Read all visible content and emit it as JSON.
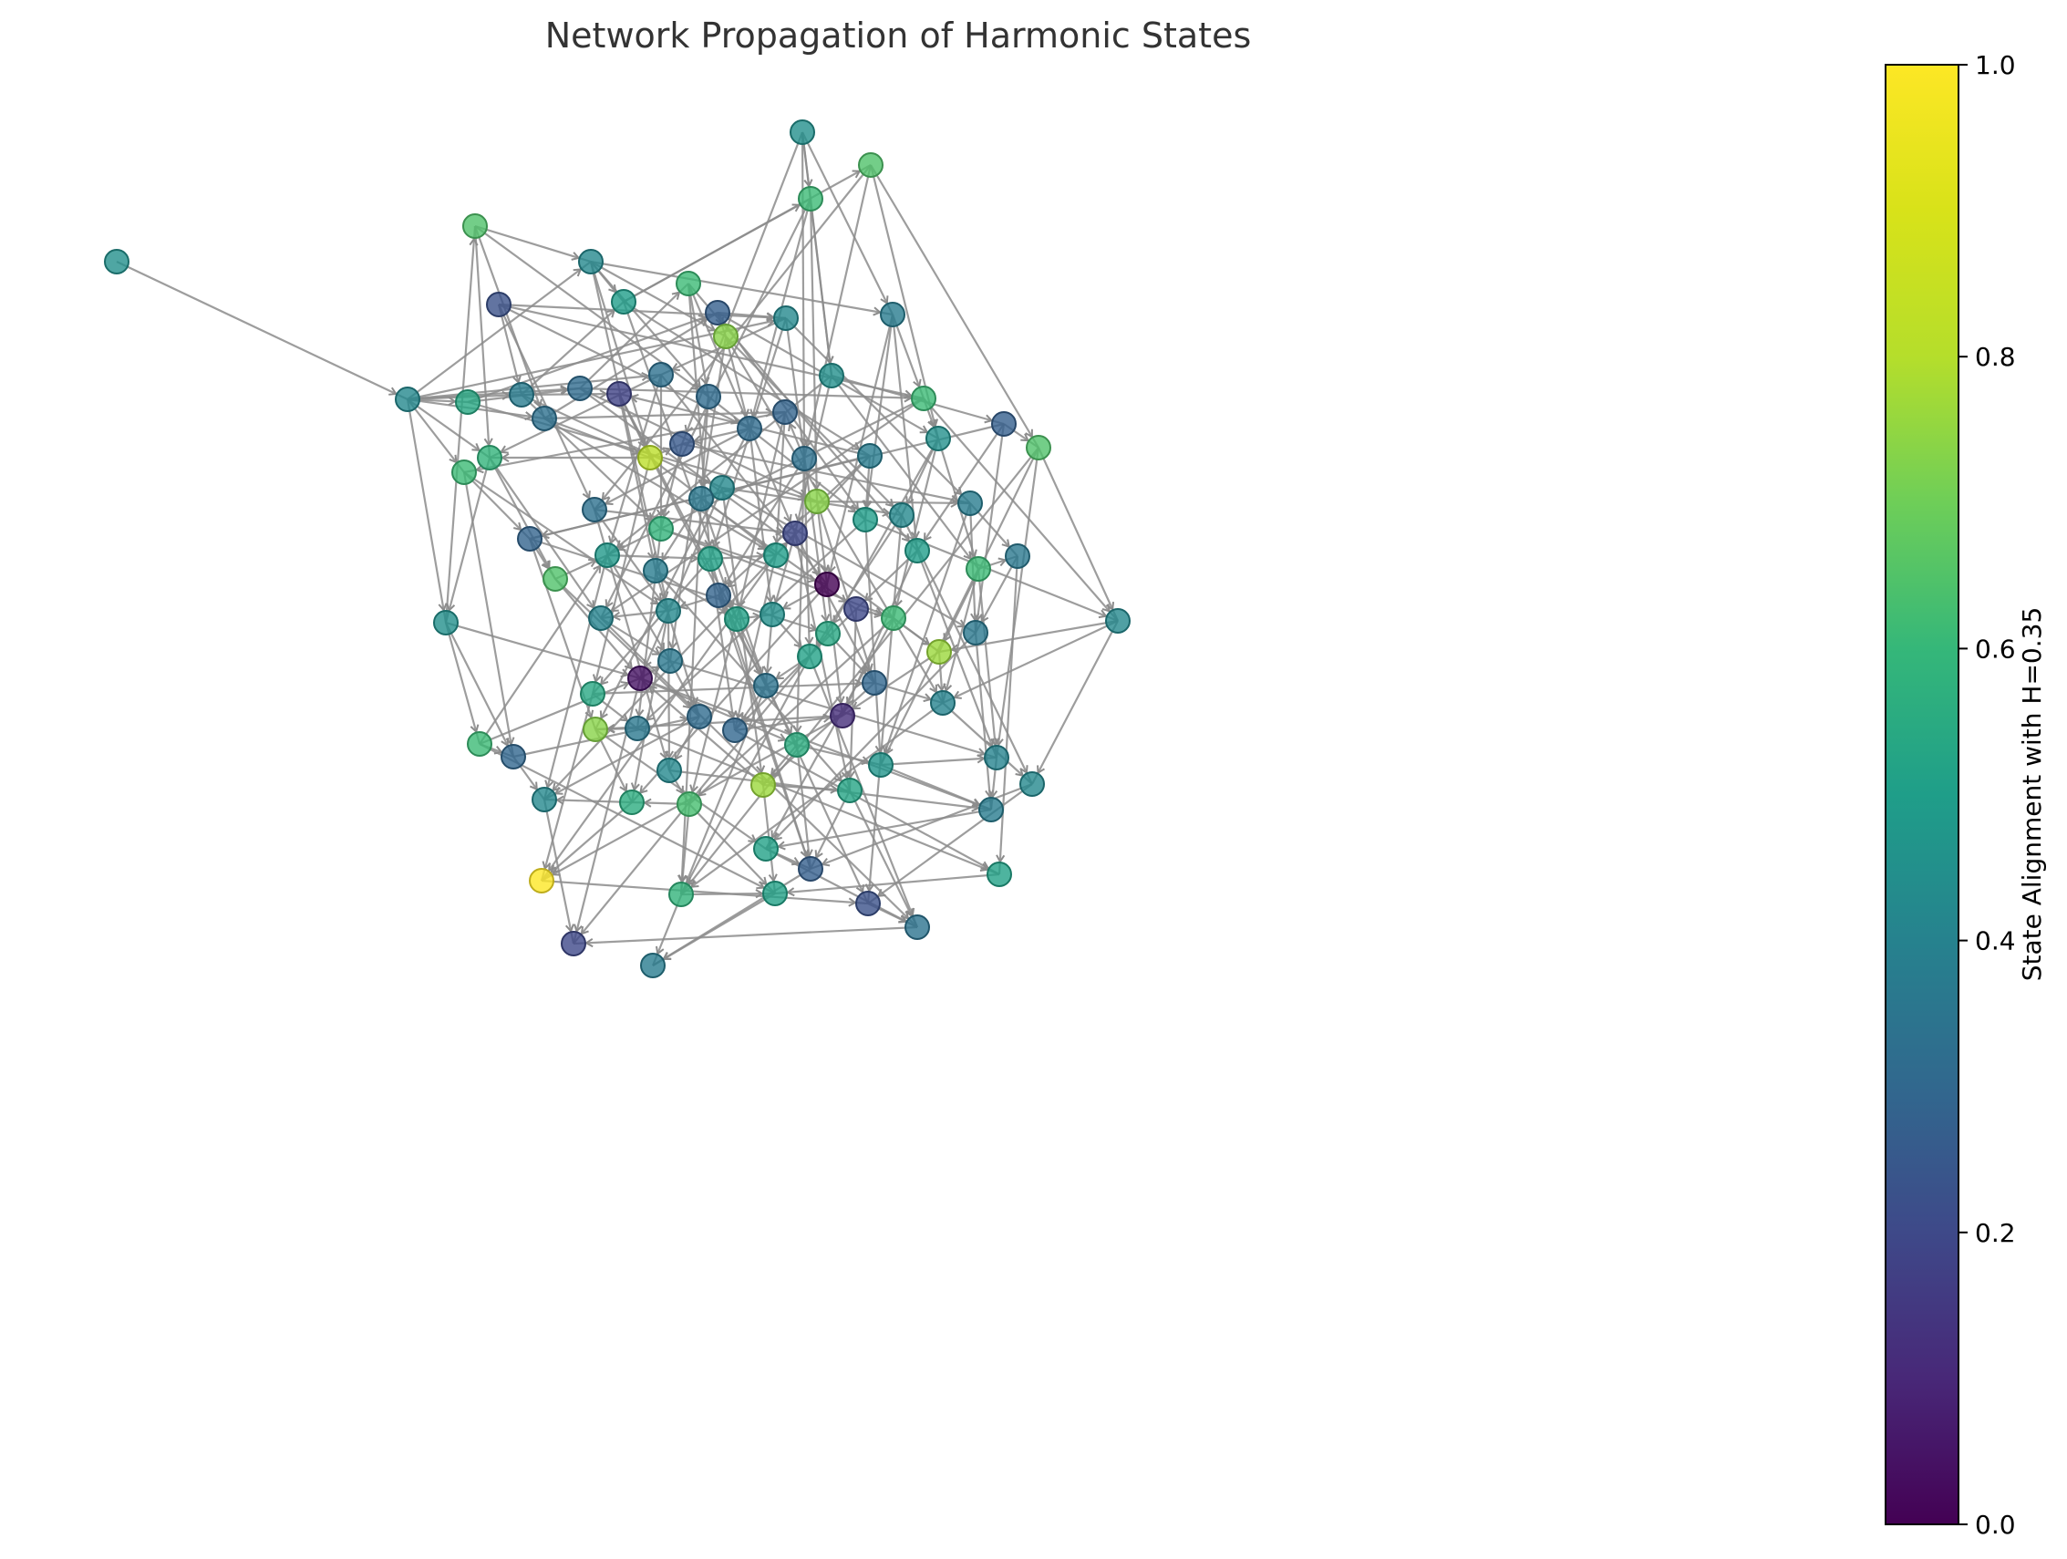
{
  "chart_data": {
    "type": "network",
    "title": "Network Propagation of Harmonic States",
    "colorbar": {
      "label": "State Alignment with H=0.35",
      "range": [
        0,
        1
      ],
      "ticks": [
        "0.0",
        "0.2",
        "0.4",
        "0.6",
        "0.8",
        "1.0"
      ],
      "colormap": "viridis"
    },
    "node_count": 110,
    "edges_shown_as_directed": true
  }
}
